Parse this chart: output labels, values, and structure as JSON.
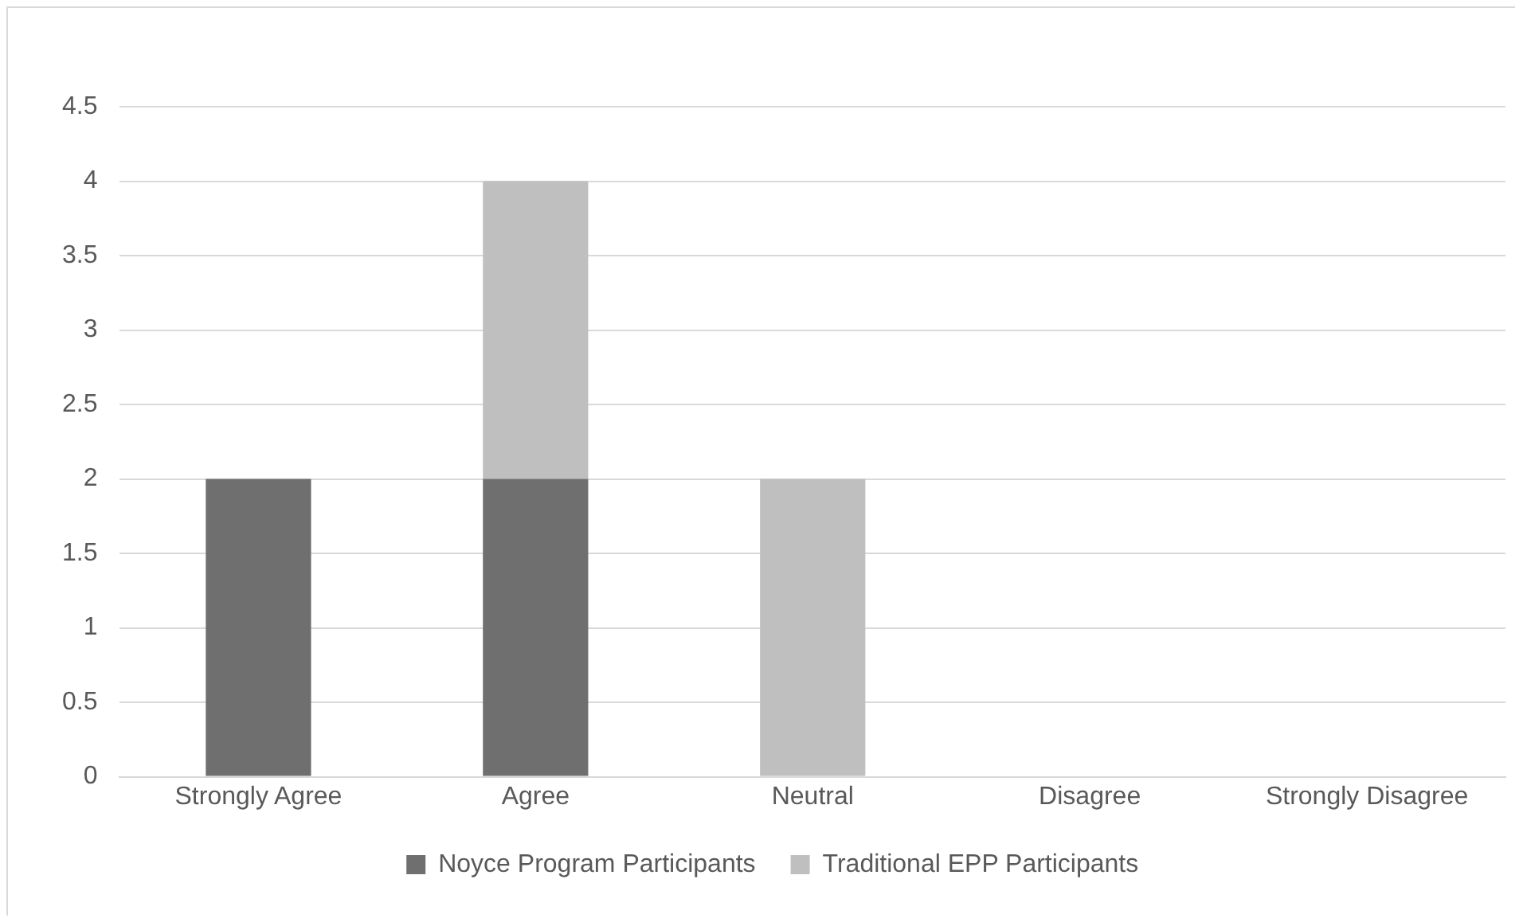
{
  "chart_data": {
    "type": "bar",
    "stacked": true,
    "categories": [
      "Strongly Agree",
      "Agree",
      "Neutral",
      "Disagree",
      "Strongly Disagree"
    ],
    "series": [
      {
        "name": "Noyce Program Participants",
        "color": "#6f6f6f",
        "values": [
          2,
          2,
          0,
          0,
          0
        ]
      },
      {
        "name": "Traditional EPP Participants",
        "color": "#bfbfbf",
        "values": [
          0,
          2,
          2,
          0,
          0
        ]
      }
    ],
    "ylim": [
      0,
      4.5
    ],
    "yticks": [
      0,
      0.5,
      1,
      1.5,
      2,
      2.5,
      3,
      3.5,
      4,
      4.5
    ],
    "grid": "y",
    "legend": "bottom"
  }
}
